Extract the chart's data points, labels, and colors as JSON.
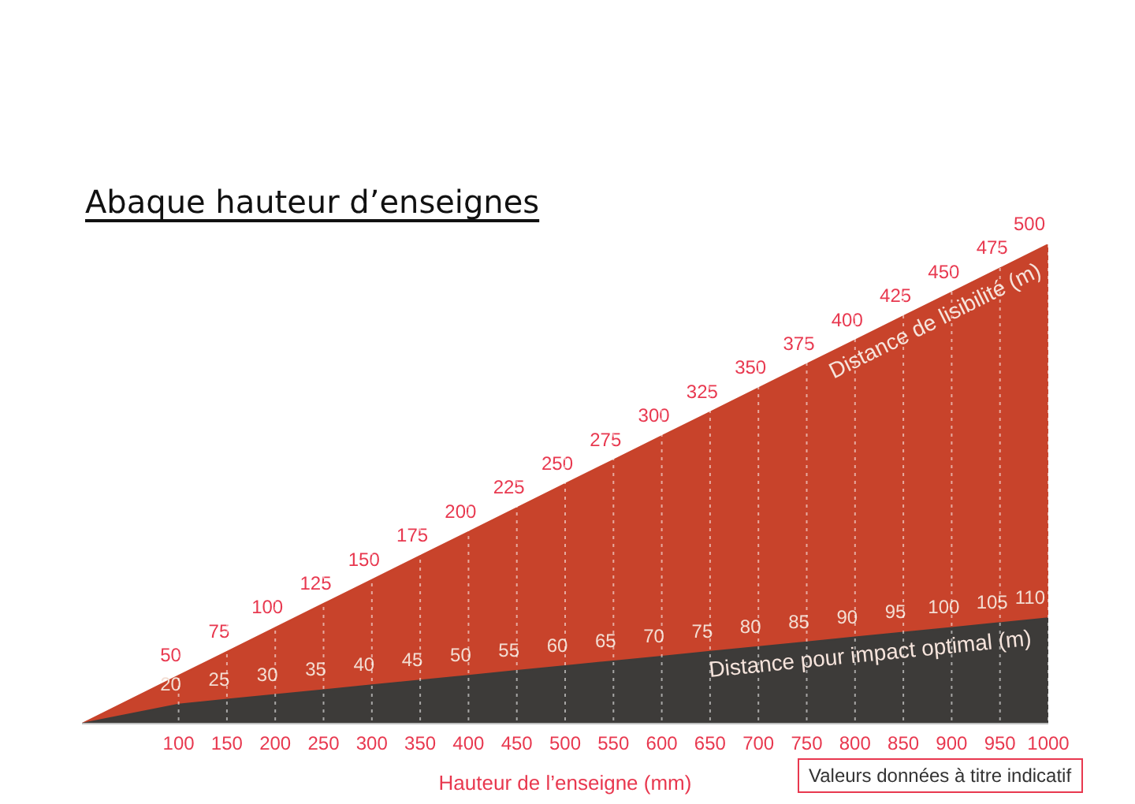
{
  "chart_data": {
    "type": "area",
    "title": "Abaque hauteur d’enseignes",
    "xlabel": "Hauteur de l’enseigne (mm)",
    "annotations": [
      "Valeurs données à titre indicatif"
    ],
    "x": [
      0,
      100,
      150,
      200,
      250,
      300,
      350,
      400,
      450,
      500,
      550,
      600,
      650,
      700,
      750,
      800,
      850,
      900,
      950,
      1000
    ],
    "xlim": [
      0,
      1000
    ],
    "xticks": [
      100,
      150,
      200,
      250,
      300,
      350,
      400,
      450,
      500,
      550,
      600,
      650,
      700,
      750,
      800,
      850,
      900,
      950,
      1000
    ],
    "grid": "x",
    "series": [
      {
        "name": "Distance de lisibilité (m)",
        "color": "#c8432b",
        "values": [
          0,
          50,
          75,
          100,
          125,
          150,
          175,
          200,
          225,
          250,
          275,
          300,
          325,
          350,
          375,
          400,
          425,
          450,
          475,
          500
        ],
        "value_labels": [
          null,
          "50",
          "75",
          "100",
          "125",
          "150",
          "175",
          "200",
          "225",
          "250",
          "275",
          "300",
          "325",
          "350",
          "375",
          "400",
          "425",
          "450",
          "475",
          "500"
        ]
      },
      {
        "name": "Distance pour impact optimal (m)",
        "color": "#3d3b39",
        "values": [
          0,
          20,
          25,
          30,
          35,
          40,
          45,
          50,
          55,
          60,
          65,
          70,
          75,
          80,
          85,
          90,
          95,
          100,
          105,
          110
        ],
        "value_labels": [
          null,
          "20",
          "25",
          "30",
          "35",
          "40",
          "45",
          "50",
          "55",
          "60",
          "65",
          "70",
          "75",
          "80",
          "85",
          "90",
          "95",
          "100",
          "105",
          "110"
        ]
      }
    ]
  }
}
